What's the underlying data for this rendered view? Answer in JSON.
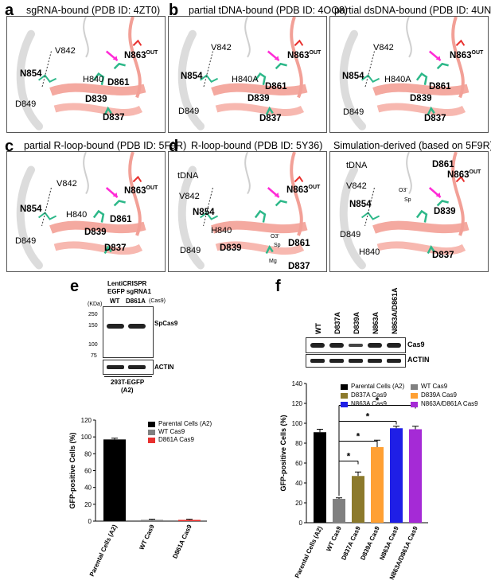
{
  "panels": [
    {
      "id": "a",
      "letter": "a",
      "title": "sgRNA-bound (PDB ID: 4ZT0)",
      "labels": [
        {
          "t": "V842",
          "b": false
        },
        {
          "t": "N863",
          "sup": "OUT",
          "b": true
        },
        {
          "t": "N854",
          "b": true
        },
        {
          "t": "H840",
          "b": false
        },
        {
          "t": "D861",
          "b": true
        },
        {
          "t": "D839",
          "b": true
        },
        {
          "t": "D849",
          "b": false
        },
        {
          "t": "D837",
          "b": true
        }
      ]
    },
    {
      "id": "b1",
      "letter": "b",
      "title": "partial tDNA-bound (PDB ID: 4OO8)",
      "labels": [
        {
          "t": "V842",
          "b": false
        },
        {
          "t": "N863",
          "sup": "OUT",
          "b": true
        },
        {
          "t": "N854",
          "b": true
        },
        {
          "t": "H840A",
          "b": false
        },
        {
          "t": "D861",
          "b": true
        },
        {
          "t": "D839",
          "b": true
        },
        {
          "t": "D849",
          "b": false
        },
        {
          "t": "D837",
          "b": true
        }
      ]
    },
    {
      "id": "b2",
      "letter": "",
      "title": "partial dsDNA-bound (PDB ID: 4UN3)",
      "labels": [
        {
          "t": "V842",
          "b": false
        },
        {
          "t": "N863",
          "sup": "OUT",
          "b": true
        },
        {
          "t": "N854",
          "b": true
        },
        {
          "t": "H840A",
          "b": false
        },
        {
          "t": "D861",
          "b": true
        },
        {
          "t": "D839",
          "b": true
        },
        {
          "t": "D849",
          "b": false
        },
        {
          "t": "D837",
          "b": true
        }
      ]
    },
    {
      "id": "c",
      "letter": "c",
      "title": "partial R-loop-bound (PDB ID: 5F9R)",
      "labels": [
        {
          "t": "V842",
          "b": false
        },
        {
          "t": "N863",
          "sup": "OUT",
          "b": true
        },
        {
          "t": "N854",
          "b": true
        },
        {
          "t": "H840",
          "b": false
        },
        {
          "t": "D861",
          "b": true
        },
        {
          "t": "D839",
          "b": true
        },
        {
          "t": "D849",
          "b": false
        },
        {
          "t": "D837",
          "b": true
        }
      ]
    },
    {
      "id": "d1",
      "letter": "d",
      "title": "R-loop-bound (PDB ID: 5Y36)",
      "labels": [
        {
          "t": "tDNA",
          "b": false
        },
        {
          "t": "N863",
          "sup": "OUT",
          "b": true
        },
        {
          "t": "V842",
          "b": false
        },
        {
          "t": "N854",
          "b": true
        },
        {
          "t": "O3'",
          "b": false,
          "s": true
        },
        {
          "t": "Sp",
          "b": false,
          "s": true
        },
        {
          "t": "H840",
          "b": false
        },
        {
          "t": "D861",
          "b": true
        },
        {
          "t": "Mg",
          "b": false,
          "s": true
        },
        {
          "t": "D839",
          "b": true
        },
        {
          "t": "D849",
          "b": false
        },
        {
          "t": "D837",
          "b": true
        }
      ]
    },
    {
      "id": "d2",
      "letter": "",
      "title": "Simulation-derived (based on 5F9R)",
      "labels": [
        {
          "t": "tDNA",
          "b": false
        },
        {
          "t": "V842",
          "b": false
        },
        {
          "t": "D861",
          "b": true
        },
        {
          "t": "N863",
          "sup": "OUT",
          "b": true
        },
        {
          "t": "O3'",
          "b": false,
          "s": true
        },
        {
          "t": "Sp",
          "b": false,
          "s": true
        },
        {
          "t": "N854",
          "b": true
        },
        {
          "t": "D839",
          "b": true
        },
        {
          "t": "D849",
          "b": false
        },
        {
          "t": "H840",
          "b": false
        },
        {
          "t": "D837",
          "b": true
        }
      ]
    }
  ],
  "panel_e": {
    "letter": "e",
    "header": [
      "LentiCRISPR",
      "EGFP sgRNA1"
    ],
    "lane_labels": [
      "WT",
      "D861A"
    ],
    "cas9_note": "(Cas9)",
    "kda_label": "(KDa)",
    "markers": [
      "250",
      "150",
      "100",
      "75"
    ],
    "band_labels": [
      "SpCas9",
      "ACTIN"
    ],
    "cell_line": [
      "293T-EGFP",
      "(A2)"
    ],
    "chart_data": {
      "type": "bar",
      "categories": [
        "Parental Cells (A2)",
        "WT Cas9",
        "D861A Cas9"
      ],
      "values": [
        97,
        1.5,
        1.5
      ],
      "errors": [
        1.5,
        0.8,
        0.8
      ],
      "colors": [
        "#000000",
        "#808080",
        "#e8312f"
      ],
      "legend": [
        "Parental Cells (A2)",
        "WT Cas9",
        "D861A Cas9"
      ],
      "ylabel": "GFP-positive Cells (%)",
      "ylim": [
        0,
        120
      ],
      "yticks": [
        0,
        20,
        40,
        60,
        80,
        100,
        120
      ]
    }
  },
  "panel_f": {
    "letter": "f",
    "lane_labels": [
      "WT",
      "D837A",
      "D839A",
      "N863A",
      "N863A/D861A"
    ],
    "band_labels": [
      "Cas9",
      "ACTIN"
    ],
    "chart_data": {
      "type": "bar",
      "categories": [
        "Parental Cells (A2)",
        "WT Cas9",
        "D837A Cas9",
        "D839A Cas9",
        "N863A Cas9",
        "N863A/D861A Cas9"
      ],
      "values": [
        91,
        24,
        47,
        76,
        95,
        94
      ],
      "errors": [
        3,
        1,
        4,
        7,
        2,
        3
      ],
      "colors": [
        "#000000",
        "#808080",
        "#8c7a2c",
        "#ffa033",
        "#1f1fe6",
        "#a52ad6"
      ],
      "legend": [
        "Parental Cells (A2)",
        "WT Cas9",
        "D837A Cas9",
        "D839A Cas9",
        "N863A Cas9",
        "N863A/D861A Cas9"
      ],
      "ylabel": "GFP-positive Cells (%)",
      "ylim": [
        0,
        140
      ],
      "yticks": [
        0,
        20,
        40,
        60,
        80,
        100,
        120,
        140
      ],
      "significance": "*"
    }
  }
}
